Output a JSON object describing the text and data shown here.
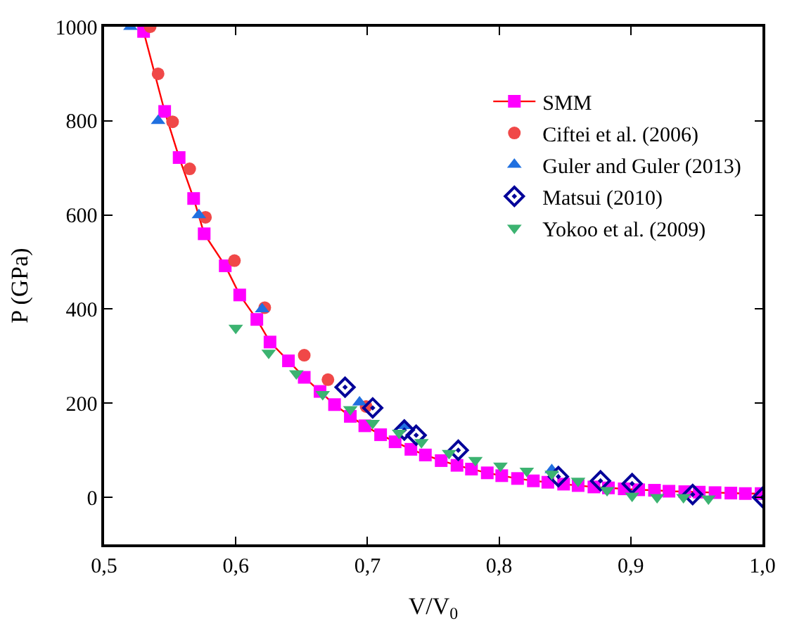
{
  "chart_data": {
    "type": "scatter",
    "xlabel": "V/V$_{0}$",
    "ylabel": "P (GPa)",
    "xlim": [
      0.5,
      1.0
    ],
    "ylim": [
      -100,
      1000
    ],
    "xticks": [
      {
        "value": 0.5,
        "label": "0,5"
      },
      {
        "value": 0.6,
        "label": "0,6"
      },
      {
        "value": 0.7,
        "label": "0,7"
      },
      {
        "value": 0.8,
        "label": "0,8"
      },
      {
        "value": 0.9,
        "label": "0,9"
      },
      {
        "value": 1.0,
        "label": "1,0"
      }
    ],
    "yticks": [
      0,
      200,
      400,
      600,
      800,
      1000
    ],
    "grid": false,
    "legend": "top right",
    "series": [
      {
        "name": "SMM",
        "type": "line",
        "marker": "square",
        "color": "#ff0000",
        "colors": [
          "#ff00ff",
          "#ff00ff",
          "#ff00ff",
          "#ff00ff",
          "#ff00ff",
          "#ff00ff",
          "#ff00ff",
          "#ff00ff",
          "#ff00ff",
          "#ff00ff",
          "#ff00ff",
          "#ff00ff",
          "#ff00ff",
          "#ff00ff",
          "#ff00ff",
          "#ff00ff",
          "#ff00ff",
          "#ff00ff",
          "#ff00ff",
          "#ff00ff",
          "#ff00ff",
          "#ff00ff",
          "#ff00ff",
          "#ff00ff",
          "#ff00ff",
          "#ff00ff",
          "#ff00ff",
          "#ff00ff",
          "#ff00ff",
          "#ff00ff",
          "#ff00ff",
          "#ff00ff",
          "#ff00ff",
          "#ff00ff",
          "#ff00ff",
          "#ff00ff",
          "#ff00ff",
          "#ff00ff",
          "#ff00ff",
          "#ff00ff",
          "#ff00ff"
        ],
        "x": [
          0.53,
          0.546,
          0.557,
          0.568,
          0.576,
          0.592,
          0.603,
          0.616,
          0.626,
          0.64,
          0.652,
          0.664,
          0.675,
          0.687,
          0.698,
          0.71,
          0.721,
          0.733,
          0.744,
          0.756,
          0.768,
          0.779,
          0.791,
          0.802,
          0.814,
          0.826,
          0.837,
          0.849,
          0.86,
          0.872,
          0.883,
          0.895,
          0.906,
          0.918,
          0.929,
          0.941,
          0.952,
          0.964,
          0.976,
          0.987,
          0.999
        ],
        "values": [
          990,
          820,
          722,
          635,
          560,
          492,
          430,
          378,
          330,
          290,
          255,
          225,
          197,
          172,
          152,
          133,
          118,
          102,
          90,
          78,
          68,
          60,
          52,
          46,
          40,
          35,
          32,
          28,
          25,
          22,
          20,
          18,
          16,
          15,
          13,
          12,
          11,
          10,
          9,
          8,
          8
        ]
      },
      {
        "name": "Ciftei et al. (2006)",
        "marker": "circle",
        "color": "#f04848",
        "x": [
          0.535,
          0.541,
          0.552,
          0.565,
          0.577,
          0.599,
          0.622,
          0.652,
          0.67,
          0.699
        ],
        "values": [
          1000,
          900,
          798,
          698,
          595,
          503,
          403,
          302,
          250,
          193
        ]
      },
      {
        "name": "Guler and Guler (2013)",
        "marker": "triangle",
        "color": "#2070e0",
        "x": [
          0.52,
          0.541,
          0.572,
          0.62,
          0.694,
          0.728,
          0.84
        ],
        "values": [
          1000,
          800,
          600,
          400,
          202,
          152,
          58
        ]
      },
      {
        "name": "Matsui (2010)",
        "marker": "diamond",
        "color": "#000099",
        "x": [
          0.683,
          0.704,
          0.728,
          0.737,
          0.769,
          0.845,
          0.877,
          0.901,
          0.947,
          1.0
        ],
        "values": [
          234,
          190,
          143,
          132,
          100,
          44,
          35,
          29,
          6,
          0
        ]
      },
      {
        "name": "Yokoo et al. (2009)",
        "marker": "triangle-down",
        "color": "#3cb371",
        "x": [
          0.6,
          0.625,
          0.646,
          0.666,
          0.687,
          0.704,
          0.724,
          0.741,
          0.762,
          0.782,
          0.801,
          0.821,
          0.84,
          0.86,
          0.882,
          0.901,
          0.92,
          0.94,
          0.959
        ],
        "values": [
          360,
          307,
          263,
          219,
          187,
          158,
          137,
          117,
          94,
          79,
          67,
          56,
          50,
          35,
          15,
          3,
          0,
          0,
          -3
        ]
      }
    ]
  }
}
